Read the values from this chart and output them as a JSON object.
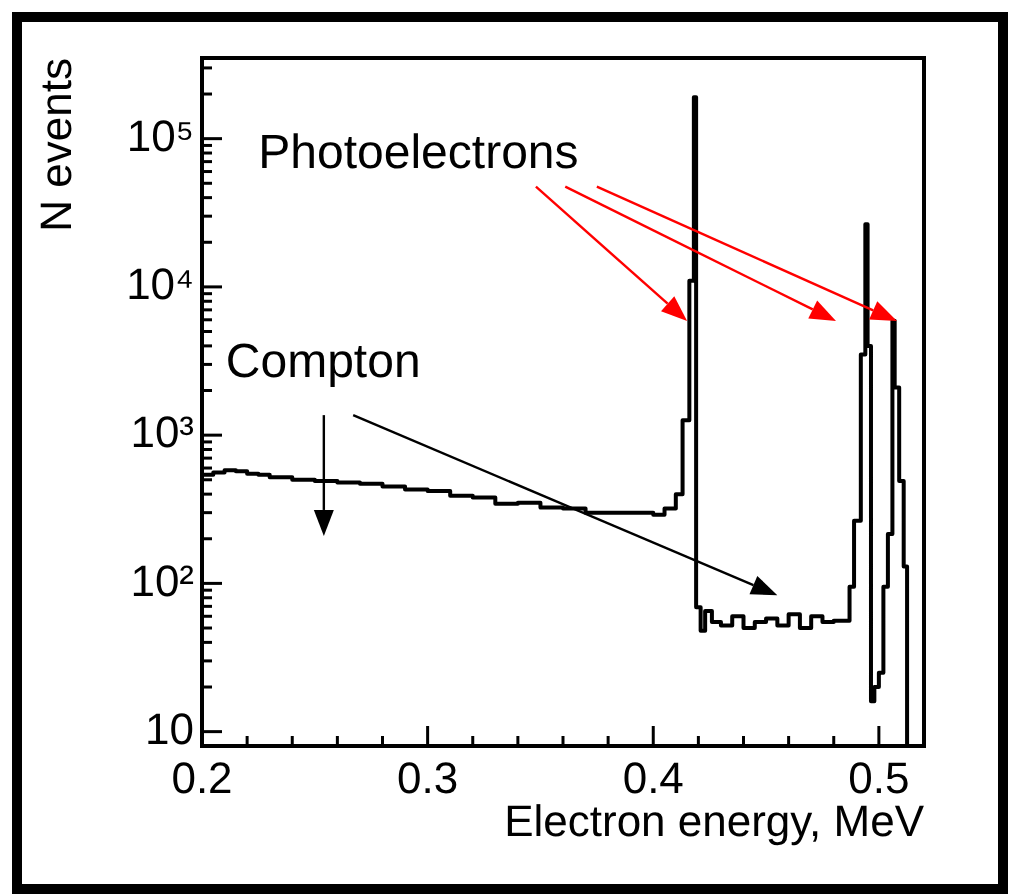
{
  "chart_data": {
    "type": "step",
    "xlabel": "Electron energy, MeV",
    "ylabel": "N events",
    "x": [
      0.2,
      0.205,
      0.21,
      0.215,
      0.22,
      0.225,
      0.23,
      0.24,
      0.25,
      0.26,
      0.27,
      0.28,
      0.29,
      0.3,
      0.31,
      0.32,
      0.33,
      0.34,
      0.35,
      0.36,
      0.37,
      0.38,
      0.39,
      0.4,
      0.405,
      0.41,
      0.413,
      0.416,
      0.418,
      0.419,
      0.421,
      0.423,
      0.426,
      0.43,
      0.435,
      0.44,
      0.445,
      0.45,
      0.455,
      0.46,
      0.465,
      0.47,
      0.475,
      0.48,
      0.485,
      0.487,
      0.489,
      0.492,
      0.494,
      0.495,
      0.4965,
      0.498,
      0.5,
      0.502,
      0.504,
      0.506,
      0.507,
      0.509,
      0.511,
      0.5125,
      0.5135
    ],
    "series": [
      {
        "color": "#000000",
        "values": [
          520,
          540,
          560,
          580,
          570,
          550,
          540,
          520,
          500,
          490,
          480,
          470,
          450,
          430,
          420,
          390,
          380,
          345,
          350,
          325,
          320,
          300,
          300,
          300,
          290,
          320,
          400,
          1260,
          11000,
          190000,
          69,
          48,
          65,
          55,
          52,
          60,
          50,
          55,
          58,
          52,
          62,
          50,
          60,
          55,
          56,
          56,
          95,
          265,
          3500,
          26500,
          4000,
          16,
          20,
          25,
          95,
          215,
          5900,
          2100,
          490,
          130,
          8
        ]
      }
    ],
    "xlim": [
      0.2,
      0.52
    ],
    "ylim": [
      8,
      350000
    ],
    "log": "y",
    "grid": false,
    "legend": false,
    "line_style": "solid",
    "marker": "none",
    "xticks": [
      0.2,
      {
        "value": 0.22,
        "label": null
      },
      {
        "value": 0.24,
        "label": null
      },
      {
        "value": 0.26,
        "label": null
      },
      {
        "value": 0.28,
        "label": null
      },
      0.3,
      {
        "value": 0.32,
        "label": null
      },
      {
        "value": 0.34,
        "label": null
      },
      {
        "value": 0.36,
        "label": null
      },
      {
        "value": 0.38,
        "label": null
      },
      0.4,
      {
        "value": 0.42,
        "label": null
      },
      {
        "value": 0.44,
        "label": null
      },
      {
        "value": 0.46,
        "label": null
      },
      {
        "value": 0.48,
        "label": null
      },
      0.5
    ],
    "yticks": [
      10,
      {
        "value": 20,
        "label": null
      },
      {
        "value": 30,
        "label": null
      },
      {
        "value": 40,
        "label": null
      },
      {
        "value": 50,
        "label": null
      },
      {
        "value": 60,
        "label": null
      },
      {
        "value": 70,
        "label": null
      },
      {
        "value": 80,
        "label": null
      },
      {
        "value": 90,
        "label": null
      },
      {
        "value": 100,
        "label": "10²"
      },
      {
        "value": 200,
        "label": null
      },
      {
        "value": 300,
        "label": null
      },
      {
        "value": 400,
        "label": null
      },
      {
        "value": 500,
        "label": null
      },
      {
        "value": 600,
        "label": null
      },
      {
        "value": 700,
        "label": null
      },
      {
        "value": 800,
        "label": null
      },
      {
        "value": 900,
        "label": null
      },
      {
        "value": 1000,
        "label": "10³"
      },
      {
        "value": 2000,
        "label": null
      },
      {
        "value": 3000,
        "label": null
      },
      {
        "value": 4000,
        "label": null
      },
      {
        "value": 5000,
        "label": null
      },
      {
        "value": 6000,
        "label": null
      },
      {
        "value": 7000,
        "label": null
      },
      {
        "value": 8000,
        "label": null
      },
      {
        "value": 9000,
        "label": null
      },
      {
        "value": 10000,
        "label": "10⁴"
      },
      {
        "value": 20000,
        "label": null
      },
      {
        "value": 30000,
        "label": null
      },
      {
        "value": 40000,
        "label": null
      },
      {
        "value": 50000,
        "label": null
      },
      {
        "value": 60000,
        "label": null
      },
      {
        "value": 70000,
        "label": null
      },
      {
        "value": 80000,
        "label": null
      },
      {
        "value": 90000,
        "label": null
      },
      {
        "value": 100000,
        "label": "10⁵"
      },
      {
        "value": 200000,
        "label": null
      },
      {
        "value": 300000,
        "label": null
      }
    ],
    "annotations": [
      "Photoelectrons",
      "Compton"
    ]
  }
}
